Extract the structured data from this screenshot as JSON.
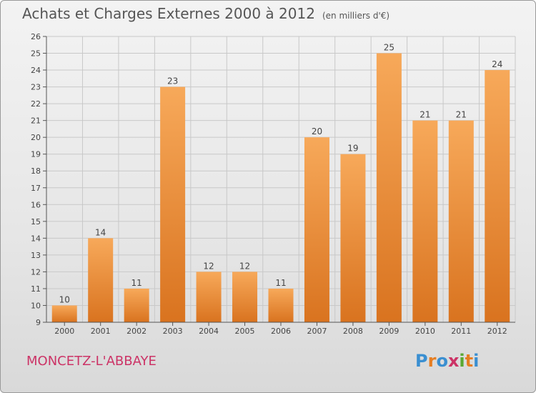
{
  "header": {
    "title": "Achats et Charges Externes 2000 à 2012",
    "unit_note": "(en milliers d'€)"
  },
  "footer": {
    "commune": "MONCETZ-L'ABBAYE",
    "logo_text": "Proxiti",
    "logo_colors": [
      "#3a8fd1",
      "#e67e22",
      "#3a8fd1",
      "#cc3366",
      "#5aa832",
      "#e67e22",
      "#3a8fd1"
    ]
  },
  "colors": {
    "bar_top": "#f7a95a",
    "bar_bottom": "#d9731f",
    "grid": "#c8c8c8",
    "axis": "#555555",
    "label": "#444444",
    "commune": "#cc3366"
  },
  "chart_data": {
    "type": "bar",
    "title": "Achats et Charges Externes 2000 à 2012",
    "subtitle": "(en milliers d'€)",
    "xlabel": "",
    "ylabel": "",
    "categories": [
      "2000",
      "2001",
      "2002",
      "2003",
      "2004",
      "2005",
      "2006",
      "2007",
      "2008",
      "2009",
      "2010",
      "2011",
      "2012"
    ],
    "values": [
      10,
      14,
      11,
      23,
      12,
      12,
      11,
      20,
      19,
      25,
      21,
      21,
      24
    ],
    "ylim": [
      9,
      26
    ],
    "yticks": [
      9,
      10,
      11,
      12,
      13,
      14,
      15,
      16,
      17,
      18,
      19,
      20,
      21,
      22,
      23,
      24,
      25,
      26
    ],
    "grid": true,
    "data_labels": true
  }
}
